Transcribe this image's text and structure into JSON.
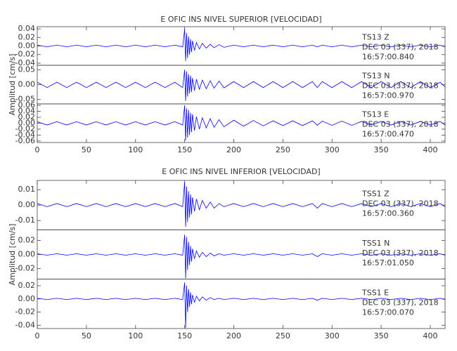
{
  "chart_data": [
    {
      "type": "line",
      "title": "E OFIC INS NIVEL SUPERIOR [VELOCIDAD]",
      "y_label": "Amplitud [cm/s]",
      "xlim": [
        0,
        415
      ],
      "xticks": [
        0,
        50,
        100,
        150,
        200,
        250,
        300,
        350,
        400
      ],
      "x": [
        0,
        10,
        20,
        30,
        40,
        50,
        60,
        70,
        80,
        90,
        100,
        110,
        120,
        130,
        140,
        148,
        150,
        151,
        152,
        153,
        154,
        155,
        156,
        157,
        158,
        160,
        162,
        165,
        168,
        172,
        176,
        180,
        185,
        190,
        200,
        210,
        220,
        230,
        240,
        250,
        260,
        270,
        280,
        285,
        290,
        300,
        310,
        320,
        330,
        340,
        350,
        360,
        370,
        380,
        390,
        400,
        410,
        415
      ],
      "series": [
        {
          "name": "TS13   Z",
          "date": "DEC 03 (337), 2018",
          "time": "16:57:00.840",
          "color": "#0000ff",
          "ylim": [
            -0.045,
            0.045
          ],
          "yticks": [
            0.04,
            0.02,
            {
              "value": 0,
              "label": "0.00"
            },
            -0.02,
            -0.04
          ],
          "values": [
            0.002,
            -0.002,
            0.002,
            -0.002,
            0.002,
            -0.002,
            0.002,
            -0.002,
            0.002,
            -0.002,
            0.002,
            -0.002,
            0.002,
            -0.002,
            0.002,
            -0.002,
            0.04,
            -0.035,
            0.03,
            -0.028,
            0.022,
            -0.02,
            0.016,
            -0.014,
            0.012,
            -0.01,
            0.008,
            -0.007,
            0.006,
            -0.005,
            0.004,
            -0.004,
            0.003,
            -0.003,
            0.002,
            -0.002,
            0.002,
            -0.002,
            0.002,
            -0.002,
            0.002,
            -0.002,
            0.002,
            -0.002,
            0.002,
            -0.002,
            0.002,
            -0.002,
            0.002,
            -0.002,
            0.002,
            -0.002,
            0.002,
            -0.002,
            0.002,
            -0.002,
            0.002,
            -0.002
          ]
        },
        {
          "name": "TS13   N",
          "date": "DEC 03 (337), 2018",
          "time": "16:57:00.970",
          "color": "#0000ff",
          "ylim": [
            -0.065,
            0.065
          ],
          "yticks": [
            0.05,
            {
              "value": 0,
              "label": "0.00"
            },
            -0.05
          ],
          "values": [
            0.008,
            -0.01,
            0.008,
            -0.01,
            0.008,
            -0.01,
            0.008,
            -0.01,
            0.008,
            -0.01,
            0.008,
            -0.01,
            0.008,
            -0.01,
            0.008,
            -0.01,
            0.05,
            -0.055,
            0.045,
            -0.04,
            0.035,
            -0.03,
            0.03,
            -0.025,
            0.022,
            -0.02,
            0.018,
            -0.016,
            0.015,
            -0.014,
            0.013,
            -0.012,
            0.012,
            -0.011,
            0.01,
            -0.01,
            0.01,
            -0.01,
            0.01,
            -0.01,
            0.01,
            -0.01,
            0.01,
            -0.01,
            0.01,
            -0.01,
            0.01,
            -0.01,
            0.01,
            -0.01,
            0.01,
            -0.01,
            0.01,
            -0.01,
            0.01,
            -0.01,
            0.008,
            -0.008
          ]
        },
        {
          "name": "TS13   E",
          "date": "DEC 03 (337), 2018",
          "time": "16:57:00.470",
          "color": "#0000ff",
          "ylim": [
            -0.065,
            0.065
          ],
          "yticks": [
            0.06,
            0.04,
            0.02,
            {
              "value": 0,
              "label": "0.00"
            },
            -0.02,
            -0.04,
            -0.06
          ],
          "values": [
            0.005,
            -0.006,
            0.005,
            -0.006,
            0.005,
            -0.006,
            0.005,
            -0.006,
            0.005,
            -0.006,
            0.005,
            -0.006,
            0.005,
            -0.006,
            0.005,
            -0.006,
            0.06,
            -0.058,
            0.05,
            -0.048,
            0.045,
            -0.04,
            0.035,
            -0.03,
            0.03,
            -0.025,
            0.022,
            -0.02,
            0.018,
            -0.016,
            0.015,
            -0.014,
            0.012,
            -0.012,
            0.01,
            -0.01,
            0.009,
            -0.009,
            0.008,
            -0.008,
            0.008,
            -0.008,
            0.008,
            -0.007,
            0.007,
            -0.007,
            0.007,
            -0.007,
            0.006,
            -0.006,
            0.006,
            -0.006,
            0.006,
            -0.006,
            0.006,
            -0.006,
            0.006,
            -0.006
          ]
        }
      ]
    },
    {
      "type": "line",
      "title": "E OFIC INS NIVEL INFERIOR [VELOCIDAD]",
      "y_label": "Amplitud [cm/s]",
      "xlim": [
        0,
        415
      ],
      "xticks": [
        0,
        50,
        100,
        150,
        200,
        250,
        300,
        350,
        400
      ],
      "x": [
        0,
        10,
        20,
        30,
        40,
        50,
        60,
        70,
        80,
        90,
        100,
        110,
        120,
        130,
        140,
        148,
        150,
        151,
        152,
        153,
        154,
        155,
        156,
        157,
        158,
        160,
        162,
        165,
        168,
        172,
        176,
        180,
        185,
        190,
        200,
        210,
        220,
        230,
        240,
        250,
        260,
        270,
        280,
        285,
        290,
        300,
        310,
        320,
        330,
        340,
        350,
        360,
        370,
        380,
        390,
        400,
        410,
        415
      ],
      "series": [
        {
          "name": "TSS1   Z",
          "date": "DEC 03 (337), 2018",
          "time": "16:57:00.360",
          "color": "#0000ff",
          "ylim": [
            -0.016,
            0.016
          ],
          "yticks": [
            0.01,
            {
              "value": 0,
              "label": "0.00"
            },
            -0.01
          ],
          "values": [
            0.001,
            -0.001,
            0.001,
            -0.001,
            0.001,
            -0.001,
            0.001,
            -0.001,
            0.001,
            -0.001,
            0.001,
            -0.001,
            0.001,
            -0.001,
            0.001,
            -0.001,
            0.015,
            -0.014,
            0.012,
            -0.011,
            0.009,
            -0.008,
            0.007,
            -0.006,
            0.005,
            -0.004,
            0.004,
            -0.003,
            0.003,
            -0.002,
            0.002,
            -0.002,
            0.001,
            -0.001,
            0.001,
            -0.001,
            0.001,
            -0.001,
            0.001,
            -0.001,
            0.001,
            -0.001,
            0.001,
            -0.002,
            0.001,
            -0.001,
            0.001,
            -0.001,
            0.001,
            -0.001,
            0.001,
            -0.001,
            0.001,
            -0.001,
            0.001,
            -0.001,
            0.001,
            -0.001
          ]
        },
        {
          "name": "TSS1   N",
          "date": "DEC 03 (337), 2018",
          "time": "16:57:01.050",
          "color": "#0000ff",
          "ylim": [
            -0.035,
            0.035
          ],
          "yticks": [
            0.02,
            {
              "value": 0,
              "label": "0.00"
            },
            -0.02
          ],
          "values": [
            0.001,
            -0.001,
            0.001,
            -0.001,
            0.001,
            -0.001,
            0.001,
            -0.001,
            0.001,
            -0.001,
            0.001,
            -0.001,
            0.001,
            -0.001,
            0.001,
            -0.001,
            0.028,
            -0.034,
            0.025,
            -0.022,
            0.018,
            -0.015,
            0.012,
            -0.01,
            0.008,
            -0.006,
            0.005,
            -0.004,
            0.003,
            -0.003,
            0.002,
            -0.002,
            0.001,
            -0.001,
            0.001,
            -0.001,
            0.001,
            -0.001,
            0.001,
            -0.001,
            0.001,
            -0.001,
            0.001,
            -0.003,
            0.001,
            -0.001,
            0.001,
            -0.001,
            0.001,
            -0.001,
            0.001,
            -0.001,
            0.001,
            -0.001,
            0.001,
            -0.001,
            0.001,
            -0.001
          ]
        },
        {
          "name": "TSS1   E",
          "date": "DEC 03 (337), 2018",
          "time": "16:57:00.070",
          "color": "#0000ff",
          "ylim": [
            -0.045,
            0.03
          ],
          "yticks": [
            0.02,
            {
              "value": 0,
              "label": "0.00"
            },
            -0.02,
            -0.04
          ],
          "values": [
            0.001,
            -0.001,
            0.001,
            -0.001,
            0.001,
            -0.001,
            0.001,
            -0.001,
            0.001,
            -0.001,
            0.001,
            -0.001,
            0.001,
            -0.001,
            0.001,
            -0.001,
            0.025,
            -0.044,
            0.02,
            -0.02,
            0.015,
            -0.012,
            0.01,
            -0.008,
            0.006,
            -0.005,
            0.004,
            -0.003,
            0.003,
            -0.002,
            0.002,
            -0.001,
            0.001,
            -0.001,
            0.001,
            -0.001,
            0.001,
            -0.001,
            0.001,
            -0.001,
            0.001,
            -0.001,
            0.001,
            -0.002,
            0.001,
            -0.001,
            0.001,
            -0.001,
            0.001,
            -0.001,
            0.001,
            -0.001,
            0.001,
            -0.001,
            0.001,
            -0.001,
            0.001,
            -0.001
          ]
        }
      ]
    }
  ]
}
